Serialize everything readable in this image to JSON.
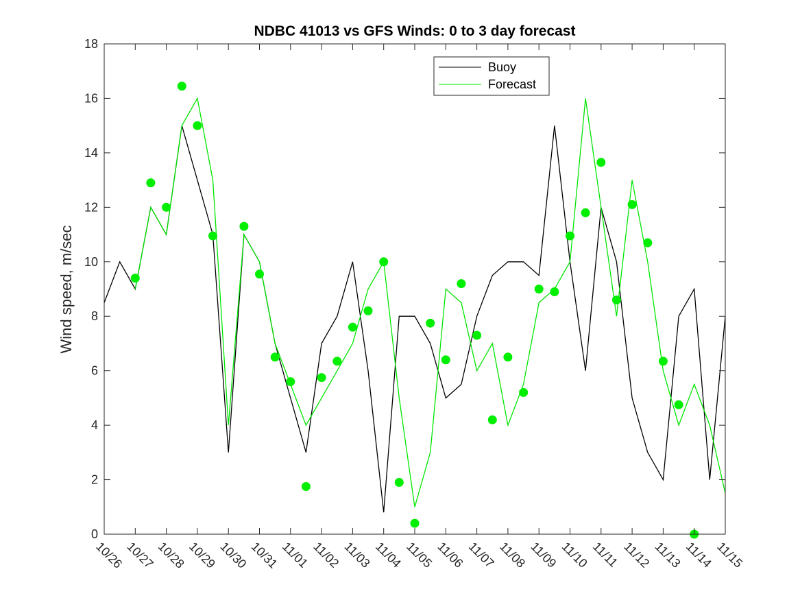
{
  "chart_data": {
    "type": "line",
    "title": "NDBC 41013 vs GFS Winds: 0 to 3 day forecast",
    "xlabel": "",
    "ylabel": "Wind speed, m/sec",
    "xlim": [
      "10/26",
      "11/15"
    ],
    "ylim": [
      0,
      18
    ],
    "y_ticks": [
      0,
      2,
      4,
      6,
      8,
      10,
      12,
      14,
      16,
      18
    ],
    "x_tick_labels": [
      "10/26",
      "10/27",
      "10/28",
      "10/29",
      "10/30",
      "10/31",
      "11/01",
      "11/02",
      "11/03",
      "11/04",
      "11/05",
      "11/06",
      "11/07",
      "11/08",
      "11/09",
      "11/10",
      "11/11",
      "11/12",
      "11/13",
      "11/14",
      "11/15"
    ],
    "grid": false,
    "legend": {
      "placement": "top-right",
      "entries": [
        "Buoy",
        "Forecast"
      ]
    },
    "colors": {
      "buoy": "#000000",
      "forecast": "#00e600",
      "markers": "#00ee00"
    },
    "buoy": {
      "name": "Buoy",
      "x_days": [
        0.0,
        0.5,
        1.0,
        1.5,
        2.0,
        2.5,
        3.0,
        3.5,
        4.0,
        4.5,
        5.0,
        5.5,
        6.0,
        6.5,
        7.0,
        7.5,
        8.0,
        8.5,
        9.0,
        9.5,
        10.0,
        10.5,
        11.0,
        11.5,
        12.0,
        12.5,
        13.0,
        13.5,
        14.0,
        14.5,
        15.0,
        15.5,
        16.0,
        16.5,
        17.0,
        17.5,
        18.0,
        18.5,
        19.0,
        19.5,
        20.0
      ],
      "values": [
        8.5,
        10,
        9,
        12,
        11,
        15,
        13,
        11,
        3,
        11,
        10,
        7,
        5,
        3,
        7,
        8,
        10,
        6,
        0.8,
        8,
        8,
        7,
        5,
        5.5,
        8,
        9.5,
        10,
        10,
        9.5,
        15,
        10,
        6,
        12,
        10,
        5,
        3,
        2,
        8,
        9,
        2,
        8
      ]
    },
    "forecast": {
      "name": "Forecast",
      "x_days": [
        1.0,
        1.5,
        2.0,
        2.5,
        3.0,
        3.5,
        4.0,
        4.5,
        5.0,
        5.5,
        6.0,
        6.5,
        7.0,
        7.5,
        8.0,
        8.5,
        9.0,
        9.5,
        10.0,
        10.5,
        11.0,
        11.5,
        12.0,
        12.5,
        13.0,
        13.5,
        14.0,
        14.5,
        15.0,
        15.5,
        16.0,
        16.5,
        17.0,
        17.5,
        18.0,
        18.5,
        19.0,
        19.5,
        20.0
      ],
      "values": [
        9,
        12,
        11,
        15,
        16,
        13,
        4,
        11,
        10,
        7,
        5.5,
        4,
        5,
        6,
        7,
        9,
        10,
        5,
        1,
        3,
        9,
        8.5,
        6,
        7,
        4,
        5.5,
        8.5,
        9,
        10,
        16,
        12,
        8,
        13,
        10,
        6,
        4,
        5.5,
        4,
        1.5
      ]
    },
    "forecast_points": {
      "name": "",
      "x_days": [
        1.0,
        1.5,
        2.0,
        2.5,
        3.0,
        3.5,
        4.5,
        5.0,
        5.5,
        6.0,
        6.5,
        7.0,
        7.5,
        8.0,
        8.5,
        9.0,
        9.5,
        10.0,
        10.5,
        11.0,
        11.5,
        12.0,
        12.5,
        13.0,
        13.5,
        14.0,
        14.5,
        15.0,
        15.5,
        16.0,
        16.5,
        17.0,
        17.5,
        18.0,
        18.5,
        19.0
      ],
      "values": [
        9.4,
        12.9,
        12.0,
        16.45,
        15.0,
        10.95,
        11.3,
        9.55,
        6.5,
        5.6,
        1.75,
        5.75,
        6.35,
        7.6,
        8.2,
        10.0,
        1.9,
        0.4,
        7.75,
        6.4,
        9.2,
        7.3,
        4.2,
        6.5,
        5.2,
        9.0,
        8.9,
        10.95,
        11.8,
        13.65,
        8.6,
        12.1,
        10.7,
        6.35,
        4.75,
        0
      ]
    }
  }
}
